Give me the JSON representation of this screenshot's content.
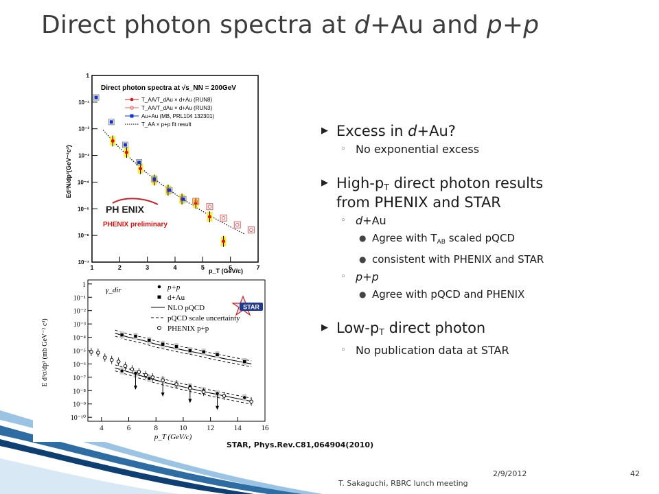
{
  "title": {
    "part1": "Direct photon spectra at ",
    "part2": "d+",
    "part3": "Au and ",
    "part4": "p+p"
  },
  "bullets": [
    {
      "pre": "Excess in ",
      "it": "d+",
      "post": "Au?"
    },
    {
      "text": "No exponential excess"
    },
    {
      "pre": "High-p",
      "sub": "T",
      "post": " direct photon results"
    },
    {
      "text": "from PHENIX and STAR"
    },
    {
      "it": "d+",
      "post": "Au"
    },
    {
      "pre": "Agree with T",
      "sub": "AB",
      "post": " scaled pQCD"
    },
    {
      "text": "consistent with PHENIX and STAR"
    },
    {
      "it": "p+p"
    },
    {
      "text": "Agree with pQCD and PHENIX"
    },
    {
      "pre": "Low-p",
      "sub": "T",
      "post": " direct photon"
    },
    {
      "text": "No publication data at STAR"
    }
  ],
  "reference": "STAR, Phys.Rev.C81,064904(2010)",
  "footer": {
    "name": "T. Sakaguchi, RBRC lunch meeting",
    "date": "2/9/2012",
    "page": "42"
  },
  "chart_data": [
    {
      "type": "scatter",
      "title": "Direct photon spectra at √s_NN = 200GeV",
      "xlabel": "p_T (GeV/c)",
      "ylabel": "Ed³N/dp³(GeV⁻²c³)",
      "xlim": [
        1,
        7
      ],
      "ylim_log10": [
        -7,
        0
      ],
      "yscale": "log",
      "xticks": [
        "1",
        "2",
        "3",
        "4",
        "5",
        "6",
        "7"
      ],
      "yticks": [
        "10⁻⁷",
        "10⁻⁶",
        "10⁻⁵",
        "10⁻⁴",
        "10⁻³",
        "10⁻²",
        "10⁻¹",
        "1"
      ],
      "legend": [
        "T_AA/T_dAu × d+Au (RUN8)",
        "T_AA/T_dAu × d+Au (RUN3)",
        "Au+Au (MB, PRL104 132301)",
        "T_AA × p+p fit result"
      ],
      "logo": "PH ENIX",
      "note": "PHENIX preliminary",
      "series": [
        {
          "name": "T_AA/T_dAu × d+Au (RUN8)",
          "color": "#e01010",
          "x": [
            1.75,
            2.25,
            2.75,
            3.25,
            3.75,
            4.25,
            4.75,
            5.25,
            5.75
          ],
          "y": [
            0.0035,
            0.0013,
            0.00032,
            0.00012,
            5e-05,
            2.3e-05,
            1.6e-05,
            5e-06,
            6e-07
          ]
        },
        {
          "name": "T_AA/T_dAu × d+Au (RUN3)",
          "color": "#e06060",
          "x": [
            4.75,
            5.25,
            5.75,
            6.25,
            6.75
          ],
          "y": [
            1.9e-05,
            1.2e-05,
            4.5e-06,
            2.5e-06,
            1.6e-06
          ]
        },
        {
          "name": "Au+Au (MB, PRL104 132301)",
          "color": "#1030d0",
          "x": [
            1.15,
            1.7,
            2.2,
            2.7,
            3.25,
            3.8,
            4.3
          ],
          "y": [
            0.15,
            0.018,
            0.0025,
            0.00055,
            0.00013,
            5e-05,
            2.3e-05
          ]
        },
        {
          "name": "T_AA × p+p fit result",
          "style": "dotted-line",
          "x": [
            1.4,
            2,
            2.5,
            3,
            3.5,
            4,
            4.5,
            5,
            5.5,
            6,
            6.5
          ],
          "y": [
            0.009,
            0.0019,
            0.0006,
            0.00021,
            8.5e-05,
            3.6e-05,
            1.65e-05,
            8e-06,
            4e-06,
            2.1e-06,
            1.15e-06
          ]
        }
      ]
    },
    {
      "type": "scatter",
      "xlabel": "p_T (GeV/c)",
      "ylabel": "E d³σ/dp³ (mb GeV⁻² c³)",
      "xlim": [
        3,
        16
      ],
      "ylim_log10": [
        -10.3,
        0.3
      ],
      "yscale": "log",
      "xticks": [
        "4",
        "6",
        "8",
        "10",
        "12",
        "14",
        "16"
      ],
      "yticks": [
        "10⁻¹⁰",
        "10⁻⁹",
        "10⁻⁸",
        "10⁻⁷",
        "10⁻⁶",
        "10⁻⁵",
        "10⁻⁴",
        "10⁻³",
        "10⁻²",
        "10⁻¹",
        "1"
      ],
      "label": "γ_dir",
      "legend": [
        "p+p",
        "d+Au",
        "NLO pQCD",
        "pQCD scale uncertainty",
        "PHENIX p+p"
      ],
      "logo": "STAR",
      "series": [
        {
          "name": "d+Au",
          "marker": "square",
          "x": [
            5.5,
            6.5,
            7.5,
            8.5,
            9.5,
            10.5,
            11.5,
            12.5,
            14.5
          ],
          "y": [
            0.00015,
            0.00012,
            6e-05,
            3e-05,
            2e-05,
            1e-05,
            8e-06,
            5e-06,
            1.5e-06
          ]
        },
        {
          "name": "p+p",
          "marker": "dot",
          "x": [
            5.5,
            6.5,
            7.5,
            8.5,
            9.5,
            10.5,
            11.5,
            12.5,
            14.5
          ],
          "y": [
            3e-07,
            2e-07,
            8e-08,
            6e-08,
            3e-08,
            2e-08,
            1e-08,
            6e-09,
            3e-09
          ]
        },
        {
          "name": "PHENIX p+p",
          "marker": "open-circle",
          "x": [
            3.25,
            3.75,
            4.25,
            4.75,
            5.25,
            5.75,
            6.25,
            6.75,
            7.25,
            7.75,
            8.5,
            9.5,
            10.5,
            11.5,
            13,
            15
          ],
          "y": [
            8e-06,
            7e-06,
            3e-06,
            2e-06,
            1.5e-06,
            7e-07,
            4e-07,
            2.5e-07,
            1.5e-07,
            1e-07,
            6e-08,
            3e-08,
            1.5e-08,
            8e-09,
            4e-09,
            1.5e-09
          ]
        },
        {
          "name": "NLO pQCD (d+Au)",
          "style": "line",
          "x": [
            5,
            6,
            7,
            8,
            9,
            10,
            11,
            12,
            13,
            14,
            15
          ],
          "y": [
            0.0002,
            0.0001,
            6e-05,
            3e-05,
            1.8e-05,
            1.1e-05,
            7e-06,
            4e-06,
            2.5e-06,
            1.6e-06,
            1e-06
          ]
        },
        {
          "name": "NLO pQCD (p+p)",
          "style": "line",
          "x": [
            5,
            6,
            7,
            8,
            9,
            10,
            11,
            12,
            13,
            14,
            15
          ],
          "y": [
            5e-07,
            2.5e-07,
            1.2e-07,
            6e-08,
            3.3e-08,
            1.9e-08,
            1.1e-08,
            6.5e-09,
            4e-09,
            2.5e-09,
            1.6e-09
          ]
        }
      ]
    }
  ]
}
